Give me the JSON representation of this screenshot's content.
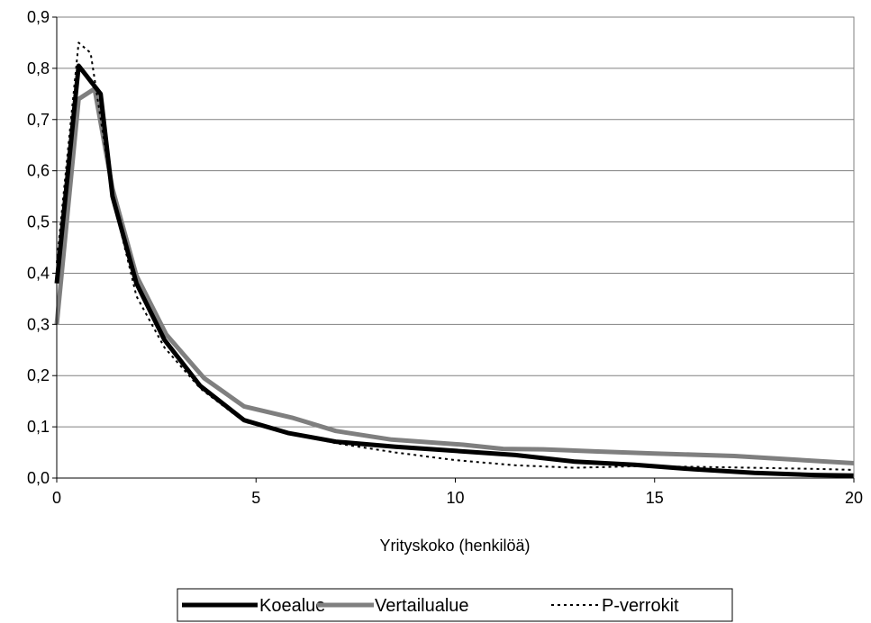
{
  "chart_data": {
    "type": "line",
    "title": "",
    "xlabel": "Yrityskoko (henkilöä)",
    "ylabel": "",
    "xlim": [
      0,
      20
    ],
    "ylim": [
      0,
      0.9
    ],
    "x_ticks": [
      "0",
      "5",
      "10",
      "15",
      "20"
    ],
    "y_ticks": [
      "0,0",
      "0,1",
      "0,2",
      "0,3",
      "0,4",
      "0,5",
      "0,6",
      "0,7",
      "0,8",
      "0,9"
    ],
    "grid": "horizontal",
    "legend_position": "bottom",
    "series": [
      {
        "name": "Koealue",
        "color": "#000000",
        "style": "solid-thick",
        "x": [
          0,
          0.55,
          1.1,
          1.4,
          2.0,
          2.7,
          3.6,
          4.7,
          5.8,
          7.0,
          8.5,
          10.0,
          11.5,
          13.0,
          14.5,
          16.0,
          17.5,
          19.0,
          20
        ],
        "y": [
          0.38,
          0.805,
          0.75,
          0.55,
          0.38,
          0.27,
          0.18,
          0.113,
          0.088,
          0.071,
          0.061,
          0.053,
          0.045,
          0.032,
          0.026,
          0.017,
          0.01,
          0.006,
          0.005
        ]
      },
      {
        "name": "Vertailualue",
        "color": "#7f7f7f",
        "style": "solid-thick",
        "x": [
          0,
          0.55,
          0.95,
          1.4,
          2.0,
          2.75,
          3.7,
          4.7,
          5.9,
          7.0,
          8.4,
          10.2,
          11.2,
          12.2,
          13.5,
          15.0,
          17.0,
          18.5,
          20
        ],
        "y": [
          0.3,
          0.74,
          0.76,
          0.565,
          0.395,
          0.28,
          0.195,
          0.14,
          0.118,
          0.092,
          0.075,
          0.065,
          0.057,
          0.056,
          0.052,
          0.048,
          0.043,
          0.036,
          0.029
        ]
      },
      {
        "name": "P-verrokit",
        "color": "#000000",
        "style": "dotted",
        "x": [
          0,
          0.55,
          0.85,
          1.4,
          2.0,
          2.7,
          3.6,
          4.7,
          5.8,
          7.0,
          8.5,
          10.0,
          11.5,
          13.0,
          14.5,
          16.0,
          17.5,
          19.0,
          20
        ],
        "y": [
          0.42,
          0.85,
          0.83,
          0.55,
          0.355,
          0.255,
          0.175,
          0.11,
          0.088,
          0.068,
          0.05,
          0.035,
          0.025,
          0.02,
          0.023,
          0.022,
          0.02,
          0.018,
          0.016
        ]
      }
    ],
    "legend": [
      {
        "label": "Koealue",
        "style": "solid-black"
      },
      {
        "label": "Vertailualue",
        "style": "solid-gray"
      },
      {
        "label": "P-verrokit",
        "style": "dotted-black"
      }
    ]
  }
}
